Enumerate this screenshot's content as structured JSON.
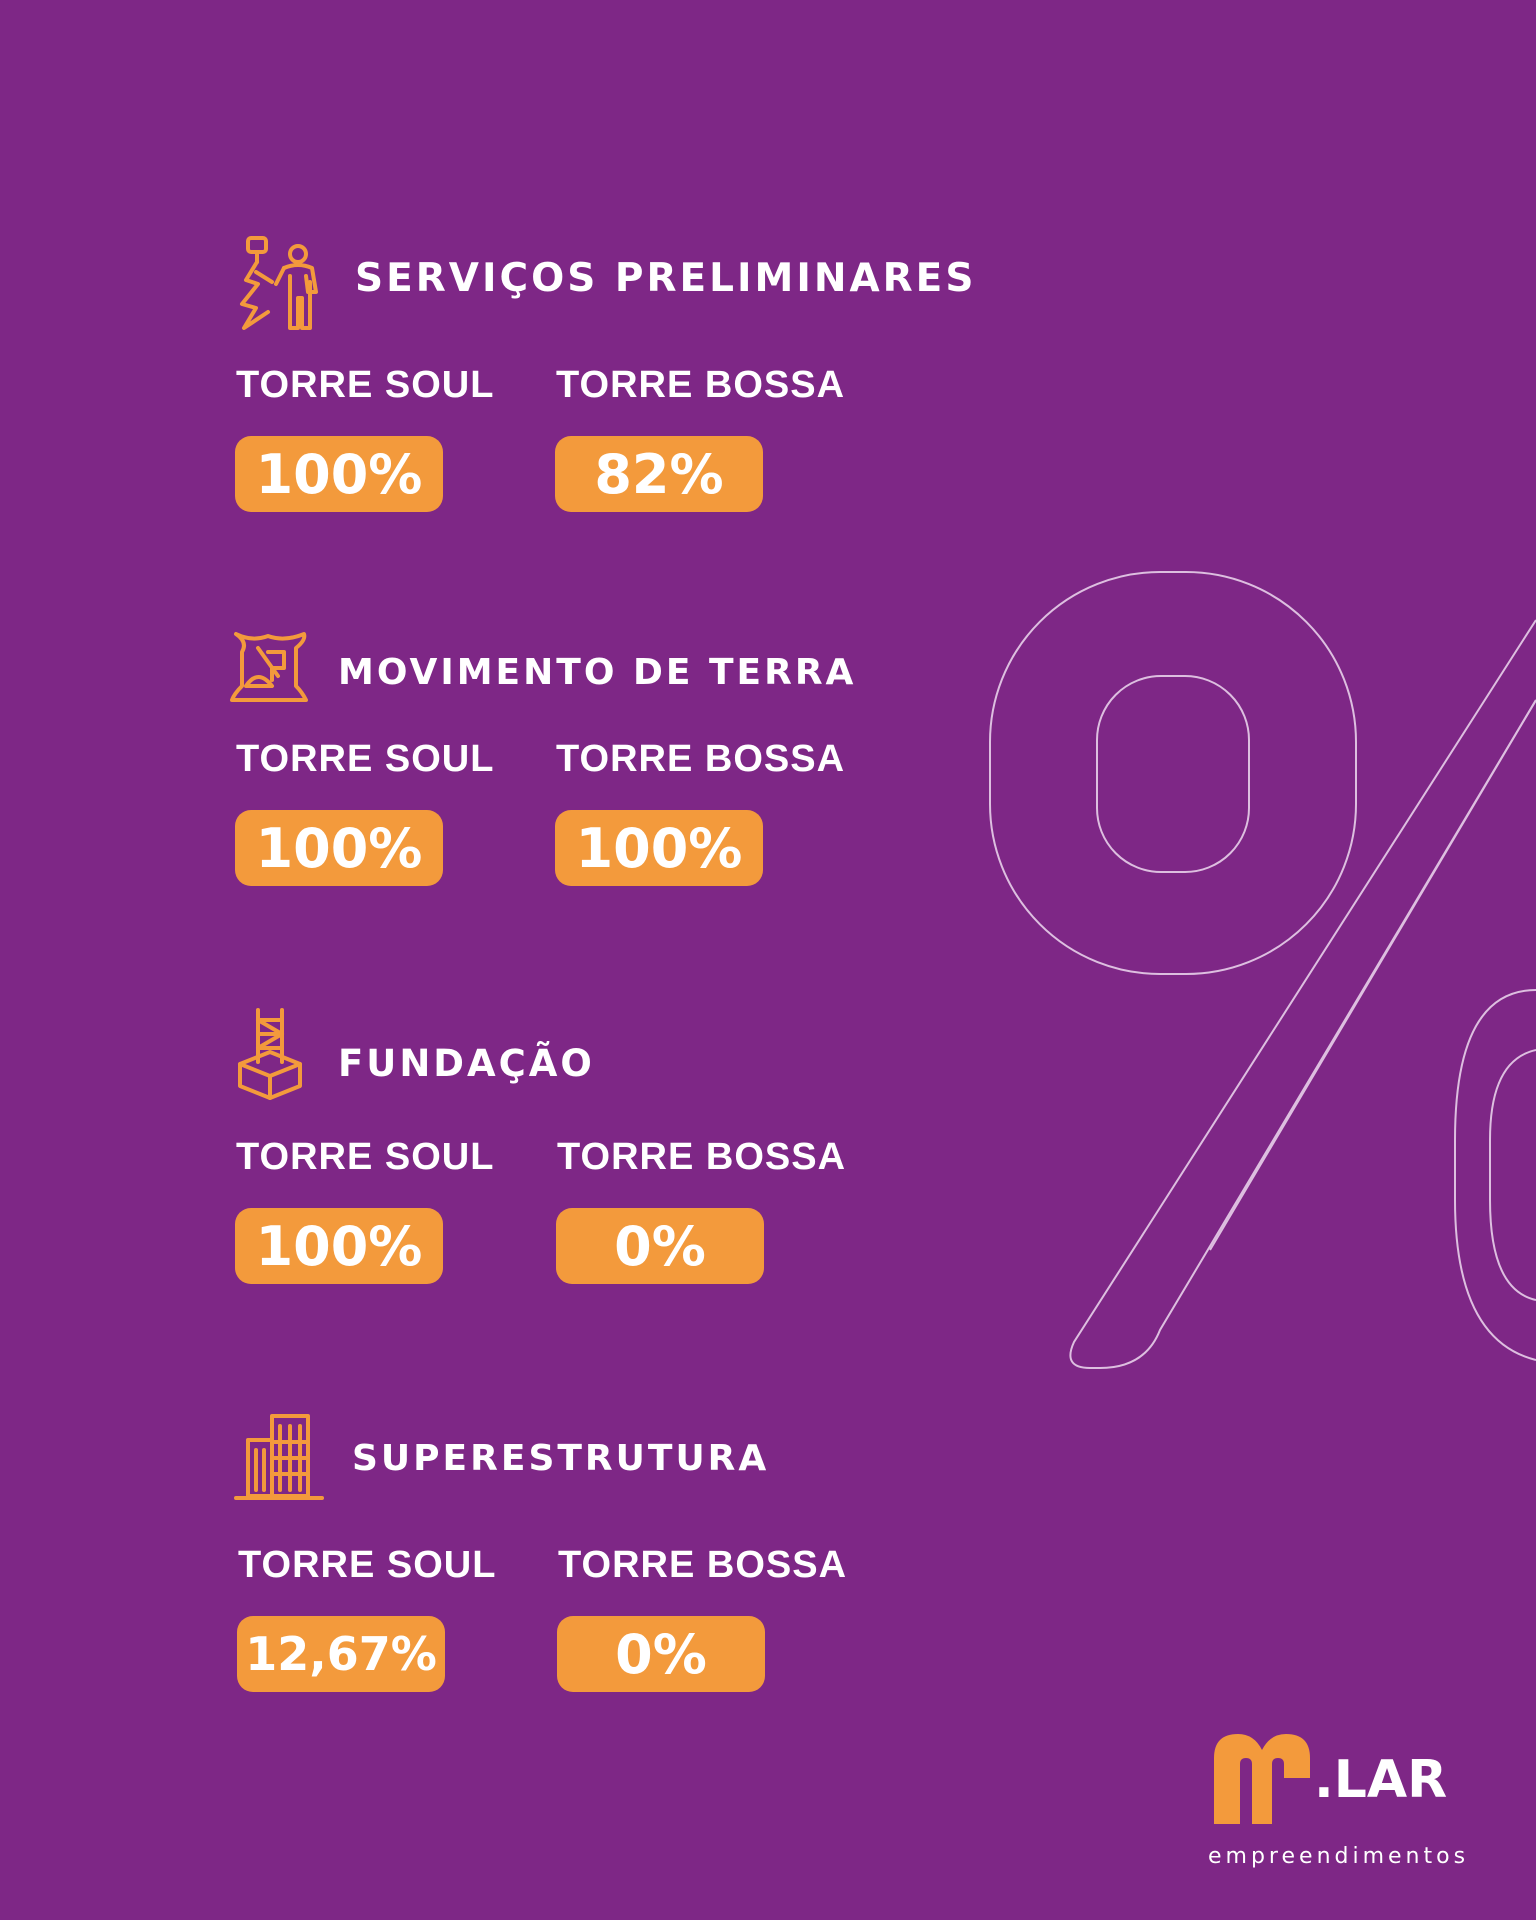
{
  "colors": {
    "background": "#7e2786",
    "accent": "#f39a3c",
    "text": "#ffffff"
  },
  "background_symbol": "%",
  "sections": [
    {
      "icon": "worker-icon",
      "title": "SERVIÇOS PRELIMINARES",
      "towers": [
        {
          "label": "TORRE SOUL",
          "value": "100%"
        },
        {
          "label": "TORRE BOSSA",
          "value": "82%"
        }
      ]
    },
    {
      "icon": "earth-sack-icon",
      "title": "MOVIMENTO DE TERRA",
      "towers": [
        {
          "label": "TORRE SOUL",
          "value": "100%"
        },
        {
          "label": "TORRE BOSSA",
          "value": "100%"
        }
      ]
    },
    {
      "icon": "foundation-icon",
      "title": "FUNDAÇÃO",
      "towers": [
        {
          "label": "TORRE SOUL",
          "value": "100%"
        },
        {
          "label": "TORRE BOSSA",
          "value": "0%"
        }
      ]
    },
    {
      "icon": "building-icon",
      "title": "SUPERESTRUTURA",
      "towers": [
        {
          "label": "TORRE SOUL",
          "value": "12,67%"
        },
        {
          "label": "TORRE BOSSA",
          "value": "0%"
        }
      ]
    }
  ],
  "logo": {
    "mark": "M",
    "name": ".LAR",
    "tagline": "empreendimentos"
  }
}
